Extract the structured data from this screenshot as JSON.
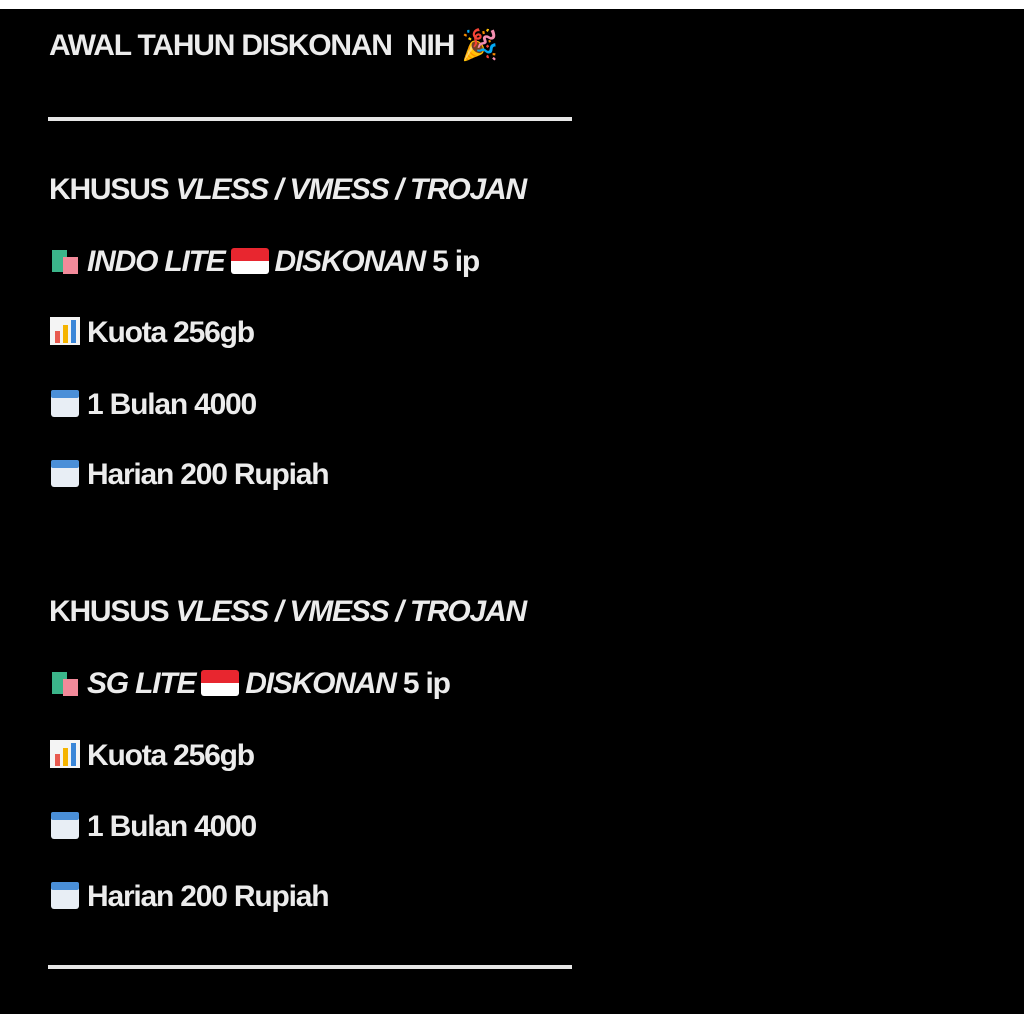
{
  "title": "AWAL TAHUN DISKONAN  NIH",
  "title_icon": "party-popper-icon",
  "sections": [
    {
      "header_prefix": "KHUSUS ",
      "header_protocols": "VLESS / VMESS / TROJAN",
      "product_name": "INDO LITE",
      "flag": "indonesia-flag",
      "flag_colors": [
        "#e8262f",
        "#ffffff"
      ],
      "discount_label": "DISKONAN",
      "ip_count": "5 ip",
      "quota": "Kuota 256gb",
      "monthly": "1 Bulan 4000",
      "daily": "Harian 200 Rupiah"
    },
    {
      "header_prefix": "KHUSUS ",
      "header_protocols": "VLESS / VMESS / TROJAN",
      "product_name": "SG LITE",
      "flag": "singapore-flag",
      "flag_colors": [
        "#e8262f",
        "#ffffff"
      ],
      "discount_label": "DISKONAN",
      "ip_count": "5 ip",
      "quota": "Kuota 256gb",
      "monthly": "1 Bulan 4000",
      "daily": "Harian 200 Rupiah"
    }
  ]
}
